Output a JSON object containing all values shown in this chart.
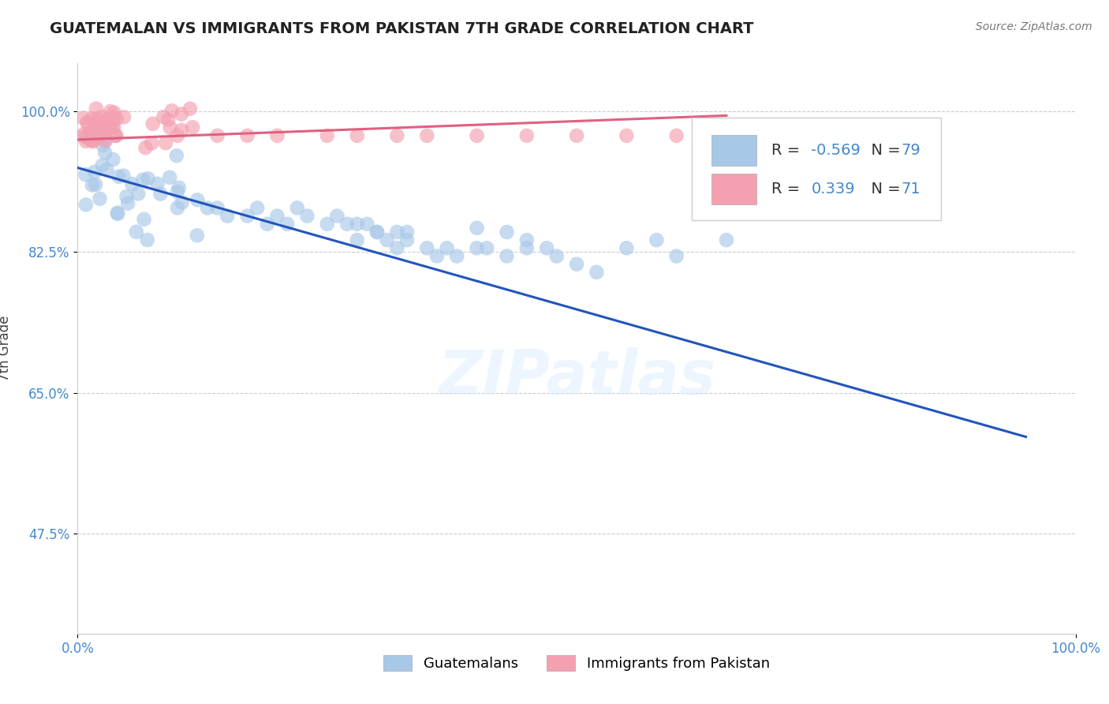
{
  "title": "GUATEMALAN VS IMMIGRANTS FROM PAKISTAN 7TH GRADE CORRELATION CHART",
  "source": "Source: ZipAtlas.com",
  "ylabel": "7th Grade",
  "xlim": [
    0.0,
    1.0
  ],
  "ylim": [
    0.35,
    1.06
  ],
  "yticks": [
    0.475,
    0.65,
    0.825,
    1.0
  ],
  "ytick_labels": [
    "47.5%",
    "65.0%",
    "82.5%",
    "100.0%"
  ],
  "watermark": "ZIPatlas",
  "legend_blue_r": "-0.569",
  "legend_blue_n": "79",
  "legend_pink_r": "0.339",
  "legend_pink_n": "71",
  "blue_color": "#a8c8e8",
  "pink_color": "#f4a0b0",
  "blue_line_color": "#2255bb",
  "pink_line_color": "#e06080",
  "blue_line_x": [
    0.0,
    0.95
  ],
  "blue_line_y": [
    0.93,
    0.595
  ],
  "pink_line_x": [
    0.0,
    0.65
  ],
  "pink_line_y": [
    0.965,
    0.995
  ]
}
